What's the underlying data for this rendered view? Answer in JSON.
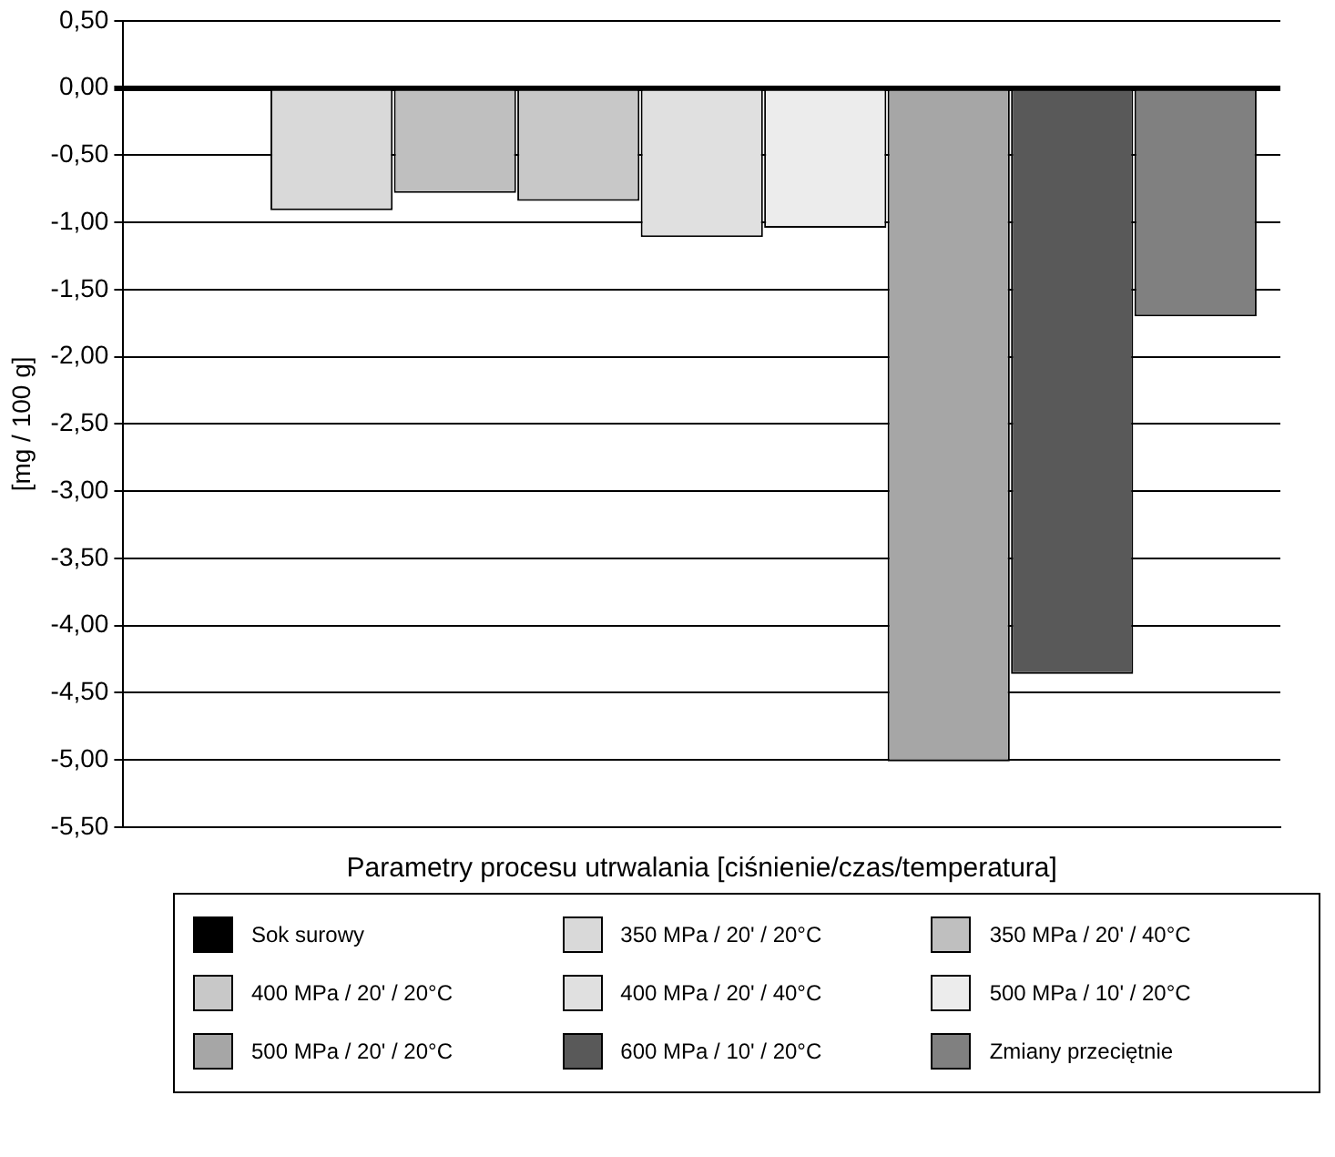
{
  "chart_data": {
    "type": "bar",
    "xlabel": "Parametry procesu utrwalania [ciśnienie/czas/temperatura]",
    "ylabel": "[mg / 100 g]",
    "categories": [
      null
    ],
    "series": [
      {
        "name": "Sok surowy",
        "color": "#000000",
        "values": [
          0
        ]
      },
      {
        "name": "350 MPa / 20' / 20°C",
        "color": "#d9d9d9",
        "values": [
          -0.91
        ]
      },
      {
        "name": "350 MPa / 20' / 40°C",
        "color": "#bfbfbf",
        "values": [
          -0.78
        ]
      },
      {
        "name": "400 MPa / 20' / 20°C",
        "color": "#c8c8c8",
        "values": [
          -0.84
        ]
      },
      {
        "name": "400 MPa / 20' / 40°C",
        "color": "#e0e0e0",
        "values": [
          -1.11
        ]
      },
      {
        "name": "500 MPa / 10' / 20°C",
        "color": "#ececec",
        "values": [
          -1.04
        ]
      },
      {
        "name": "500 MPa / 20' / 20°C",
        "color": "#a6a6a6",
        "values": [
          -5.01
        ]
      },
      {
        "name": "600 MPa / 10' / 20°C",
        "color": "#595959",
        "values": [
          -4.36
        ]
      },
      {
        "name": "Zmiany przeciętnie",
        "color": "#808080",
        "values": [
          -1.7
        ]
      }
    ],
    "ylim": [
      -5.5,
      0.5
    ],
    "yticks": [
      {
        "value": 0.5,
        "label": "0,50"
      },
      {
        "value": 0,
        "label": "0,00"
      },
      {
        "value": -0.5,
        "label": "-0,50"
      },
      {
        "value": -1,
        "label": "-1,00"
      },
      {
        "value": -1.5,
        "label": "-1,50"
      },
      {
        "value": -2,
        "label": "-2,00"
      },
      {
        "value": -2.5,
        "label": "-2,50"
      },
      {
        "value": -3,
        "label": "-3,00"
      },
      {
        "value": -3.5,
        "label": "-3,50"
      },
      {
        "value": -4,
        "label": "-4,00"
      },
      {
        "value": -4.5,
        "label": "-4,50"
      },
      {
        "value": -5,
        "label": "-5,00"
      },
      {
        "value": -5.5,
        "label": "-5,50"
      }
    ],
    "grid": "y",
    "legend": "bottom",
    "tick_labels": "y"
  }
}
